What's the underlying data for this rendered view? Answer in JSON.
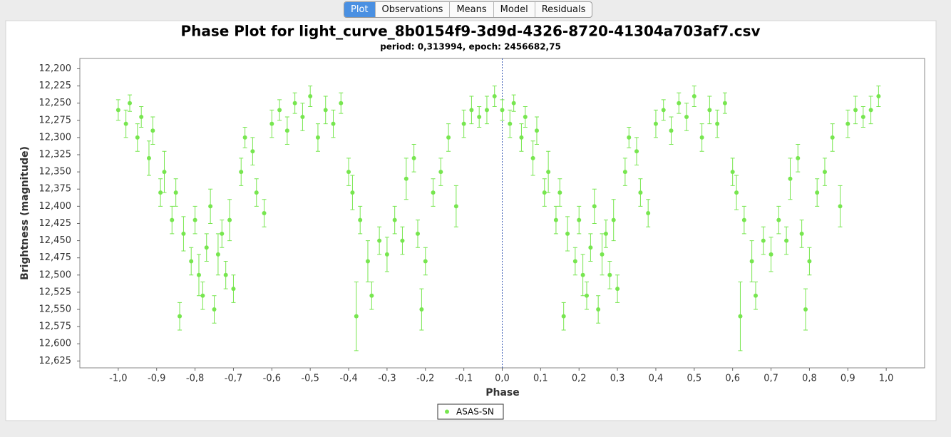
{
  "tabs": [
    "Plot",
    "Observations",
    "Means",
    "Model",
    "Residuals"
  ],
  "chart_data": {
    "type": "scatter",
    "title": "Phase Plot for light_curve_8b0154f9-3d9d-4326-8720-41304a703af7.csv",
    "subtitle": "period: 0,313994, epoch: 2456682,75",
    "x_label": "Phase",
    "y_label": "Brightness (magnitude)",
    "xlim": [
      -1.1,
      1.1
    ],
    "ylim": [
      12.185,
      12.635
    ],
    "y_inverted": true,
    "xticks": [
      {
        "value": -1,
        "label": "-1,0"
      },
      {
        "value": -0.9,
        "label": "-0,9"
      },
      {
        "value": -0.8,
        "label": "-0,8"
      },
      {
        "value": -0.7,
        "label": "-0,7"
      },
      {
        "value": -0.6,
        "label": "-0,6"
      },
      {
        "value": -0.5,
        "label": "-0,5"
      },
      {
        "value": -0.4,
        "label": "-0,4"
      },
      {
        "value": -0.3,
        "label": "-0,3"
      },
      {
        "value": -0.2,
        "label": "-0,2"
      },
      {
        "value": -0.1,
        "label": "-0,1"
      },
      {
        "value": 0,
        "label": "0,0"
      },
      {
        "value": 0.1,
        "label": "0,1"
      },
      {
        "value": 0.2,
        "label": "0,2"
      },
      {
        "value": 0.3,
        "label": "0,3"
      },
      {
        "value": 0.4,
        "label": "0,4"
      },
      {
        "value": 0.5,
        "label": "0,5"
      },
      {
        "value": 0.6,
        "label": "0,6"
      },
      {
        "value": 0.7,
        "label": "0,7"
      },
      {
        "value": 0.8,
        "label": "0,8"
      },
      {
        "value": 0.9,
        "label": "0,9"
      },
      {
        "value": 1,
        "label": "1,0"
      }
    ],
    "yticks": [
      {
        "value": 12.2,
        "label": "12,200"
      },
      {
        "value": 12.225,
        "label": "12,225"
      },
      {
        "value": 12.25,
        "label": "12,250"
      },
      {
        "value": 12.275,
        "label": "12,275"
      },
      {
        "value": 12.3,
        "label": "12,300"
      },
      {
        "value": 12.325,
        "label": "12,325"
      },
      {
        "value": 12.35,
        "label": "12,350"
      },
      {
        "value": 12.375,
        "label": "12,375"
      },
      {
        "value": 12.4,
        "label": "12,400"
      },
      {
        "value": 12.425,
        "label": "12,425"
      },
      {
        "value": 12.45,
        "label": "12,450"
      },
      {
        "value": 12.475,
        "label": "12,475"
      },
      {
        "value": 12.5,
        "label": "12,500"
      },
      {
        "value": 12.525,
        "label": "12,525"
      },
      {
        "value": 12.55,
        "label": "12,550"
      },
      {
        "value": 12.575,
        "label": "12,575"
      },
      {
        "value": 12.6,
        "label": "12,600"
      },
      {
        "value": 12.625,
        "label": "12,625"
      }
    ],
    "series": [
      {
        "name": "ASAS-SN",
        "color": "#77e64f",
        "x": [
          -1.0,
          -0.98,
          -0.97,
          -0.95,
          -0.94,
          -0.92,
          -0.91,
          -0.89,
          -0.88,
          -0.86,
          -0.85,
          -0.84,
          -0.83,
          -0.81,
          -0.8,
          -0.79,
          -0.78,
          -0.77,
          -0.76,
          -0.75,
          -0.74,
          -0.73,
          -0.72,
          -0.71,
          -0.7,
          -0.68,
          -0.67,
          -0.65,
          -0.64,
          -0.62,
          -0.6,
          -0.58,
          -0.56,
          -0.54,
          -0.52,
          -0.5,
          -0.48,
          -0.46,
          -0.44,
          -0.42,
          -0.4,
          -0.39,
          -0.38,
          -0.37,
          -0.35,
          -0.34,
          -0.32,
          -0.3,
          -0.28,
          -0.26,
          -0.25,
          -0.23,
          -0.22,
          -0.21,
          -0.2,
          -0.18,
          -0.16,
          -0.14,
          -0.12,
          -0.1,
          -0.08,
          -0.06,
          -0.04,
          -0.02,
          0.0,
          0.02,
          0.03,
          0.05,
          0.06,
          0.08,
          0.09,
          0.11,
          0.12,
          0.14,
          0.15,
          0.16,
          0.17,
          0.19,
          0.2,
          0.21,
          0.22,
          0.23,
          0.24,
          0.25,
          0.26,
          0.27,
          0.28,
          0.29,
          0.3,
          0.32,
          0.33,
          0.35,
          0.36,
          0.38,
          0.4,
          0.42,
          0.44,
          0.46,
          0.48,
          0.5,
          0.52,
          0.54,
          0.56,
          0.58,
          0.6,
          0.61,
          0.62,
          0.63,
          0.65,
          0.66,
          0.68,
          0.7,
          0.72,
          0.74,
          0.75,
          0.77,
          0.78,
          0.79,
          0.8,
          0.82,
          0.84,
          0.86,
          0.88,
          0.9,
          0.92,
          0.94,
          0.96,
          0.98
        ],
        "values": [
          12.26,
          12.28,
          12.25,
          12.3,
          12.27,
          12.33,
          12.29,
          12.38,
          12.35,
          12.42,
          12.38,
          12.56,
          12.44,
          12.48,
          12.42,
          12.5,
          12.53,
          12.46,
          12.4,
          12.55,
          12.47,
          12.44,
          12.5,
          12.42,
          12.52,
          12.35,
          12.3,
          12.32,
          12.38,
          12.41,
          12.28,
          12.26,
          12.29,
          12.25,
          12.27,
          12.24,
          12.3,
          12.26,
          12.28,
          12.25,
          12.35,
          12.38,
          12.56,
          12.42,
          12.48,
          12.53,
          12.45,
          12.47,
          12.42,
          12.45,
          12.36,
          12.33,
          12.44,
          12.55,
          12.48,
          12.38,
          12.35,
          12.3,
          12.4,
          12.28,
          12.26,
          12.27,
          12.26,
          12.24,
          12.26,
          12.28,
          12.25,
          12.3,
          12.27,
          12.33,
          12.29,
          12.38,
          12.35,
          12.42,
          12.38,
          12.56,
          12.44,
          12.48,
          12.42,
          12.5,
          12.53,
          12.46,
          12.4,
          12.55,
          12.47,
          12.44,
          12.5,
          12.42,
          12.52,
          12.35,
          12.3,
          12.32,
          12.38,
          12.41,
          12.28,
          12.26,
          12.29,
          12.25,
          12.27,
          12.24,
          12.3,
          12.26,
          12.28,
          12.25,
          12.35,
          12.38,
          12.56,
          12.42,
          12.48,
          12.53,
          12.45,
          12.47,
          12.42,
          12.45,
          12.36,
          12.33,
          12.44,
          12.55,
          12.48,
          12.38,
          12.35,
          12.3,
          12.4,
          12.28,
          12.26,
          12.27,
          12.26,
          12.24
        ],
        "errors": [
          0.015,
          0.02,
          0.012,
          0.02,
          0.015,
          0.025,
          0.02,
          0.02,
          0.03,
          0.02,
          0.02,
          0.02,
          0.025,
          0.02,
          0.02,
          0.03,
          0.02,
          0.02,
          0.025,
          0.02,
          0.03,
          0.02,
          0.02,
          0.03,
          0.02,
          0.02,
          0.015,
          0.02,
          0.02,
          0.02,
          0.02,
          0.015,
          0.02,
          0.015,
          0.02,
          0.015,
          0.02,
          0.02,
          0.02,
          0.015,
          0.02,
          0.025,
          0.05,
          0.02,
          0.03,
          0.02,
          0.02,
          0.025,
          0.02,
          0.02,
          0.03,
          0.02,
          0.02,
          0.03,
          0.02,
          0.02,
          0.02,
          0.02,
          0.03,
          0.02,
          0.02,
          0.015,
          0.02,
          0.015,
          0.015,
          0.02,
          0.012,
          0.02,
          0.015,
          0.025,
          0.02,
          0.02,
          0.03,
          0.02,
          0.02,
          0.02,
          0.025,
          0.02,
          0.02,
          0.03,
          0.02,
          0.02,
          0.025,
          0.02,
          0.03,
          0.02,
          0.02,
          0.03,
          0.02,
          0.02,
          0.015,
          0.02,
          0.02,
          0.02,
          0.02,
          0.015,
          0.02,
          0.015,
          0.02,
          0.015,
          0.02,
          0.02,
          0.02,
          0.015,
          0.02,
          0.025,
          0.05,
          0.02,
          0.03,
          0.02,
          0.02,
          0.025,
          0.02,
          0.02,
          0.03,
          0.02,
          0.02,
          0.03,
          0.02,
          0.02,
          0.02,
          0.02,
          0.03,
          0.02,
          0.02,
          0.015,
          0.02,
          0.015
        ]
      }
    ]
  }
}
